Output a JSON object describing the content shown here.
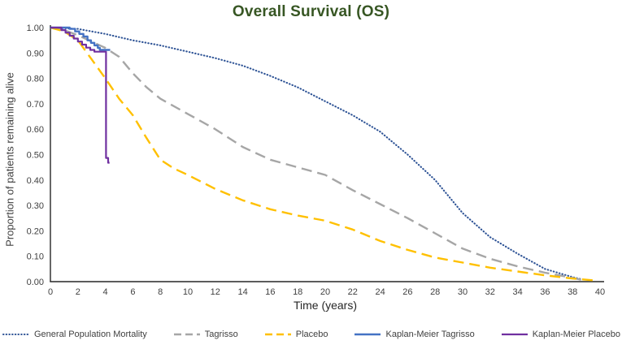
{
  "chart_data": {
    "type": "line",
    "title": "Overall Survival (OS)",
    "xlabel": "Time (years)",
    "ylabel": "Proportion of patients remaining alive",
    "xlim": [
      0,
      40
    ],
    "ylim": [
      0,
      1
    ],
    "grid": false,
    "legend_position": "bottom",
    "x_ticks": [
      "0",
      "2",
      "4",
      "6",
      "8",
      "10",
      "12",
      "14",
      "16",
      "18",
      "20",
      "22",
      "24",
      "26",
      "28",
      "30",
      "32",
      "34",
      "36",
      "38",
      "40"
    ],
    "y_ticks": [
      "0.00",
      "0.10",
      "0.20",
      "0.30",
      "0.40",
      "0.50",
      "0.60",
      "0.70",
      "0.80",
      "0.90",
      "1.00"
    ],
    "colors": {
      "title_green": "#375623",
      "general_population": "#2F5496",
      "tagrisso": "#A6A6A6",
      "placebo": "#FFC000",
      "km_tagrisso": "#4472C4",
      "km_placebo": "#7030A0"
    },
    "series": [
      {
        "name": "General Population Mortality",
        "color": "#2F5496",
        "style": "dotted",
        "width": 2.1,
        "mode": "line",
        "points": [
          [
            0,
            1.0
          ],
          [
            2,
            0.995
          ],
          [
            4,
            0.975
          ],
          [
            6,
            0.95
          ],
          [
            8,
            0.93
          ],
          [
            10,
            0.905
          ],
          [
            12,
            0.88
          ],
          [
            14,
            0.85
          ],
          [
            16,
            0.81
          ],
          [
            18,
            0.765
          ],
          [
            20,
            0.71
          ],
          [
            22,
            0.655
          ],
          [
            24,
            0.59
          ],
          [
            26,
            0.5
          ],
          [
            28,
            0.4
          ],
          [
            30,
            0.27
          ],
          [
            32,
            0.175
          ],
          [
            34,
            0.11
          ],
          [
            36,
            0.05
          ],
          [
            38,
            0.018
          ],
          [
            38.6,
            0.01
          ]
        ]
      },
      {
        "name": "Tagrisso",
        "color": "#A6A6A6",
        "style": "dashed",
        "width": 2.4,
        "mode": "line",
        "points": [
          [
            0,
            1.0
          ],
          [
            1,
            0.99
          ],
          [
            2,
            0.97
          ],
          [
            3,
            0.945
          ],
          [
            4,
            0.92
          ],
          [
            5,
            0.885
          ],
          [
            6,
            0.82
          ],
          [
            7,
            0.765
          ],
          [
            8,
            0.72
          ],
          [
            10,
            0.66
          ],
          [
            12,
            0.6
          ],
          [
            14,
            0.53
          ],
          [
            16,
            0.48
          ],
          [
            18,
            0.45
          ],
          [
            20,
            0.42
          ],
          [
            22,
            0.36
          ],
          [
            24,
            0.305
          ],
          [
            26,
            0.25
          ],
          [
            28,
            0.19
          ],
          [
            30,
            0.13
          ],
          [
            32,
            0.09
          ],
          [
            34,
            0.06
          ],
          [
            36,
            0.035
          ],
          [
            38,
            0.015
          ],
          [
            38.8,
            0.005
          ]
        ]
      },
      {
        "name": "Placebo",
        "color": "#FFC000",
        "style": "dashed",
        "width": 2.4,
        "mode": "line",
        "points": [
          [
            0,
            1.0
          ],
          [
            1,
            0.985
          ],
          [
            2,
            0.95
          ],
          [
            3,
            0.875
          ],
          [
            4,
            0.8
          ],
          [
            5,
            0.72
          ],
          [
            6,
            0.655
          ],
          [
            7,
            0.565
          ],
          [
            8,
            0.48
          ],
          [
            9,
            0.445
          ],
          [
            10,
            0.42
          ],
          [
            12,
            0.365
          ],
          [
            14,
            0.32
          ],
          [
            16,
            0.285
          ],
          [
            18,
            0.26
          ],
          [
            20,
            0.24
          ],
          [
            22,
            0.205
          ],
          [
            24,
            0.16
          ],
          [
            26,
            0.125
          ],
          [
            28,
            0.095
          ],
          [
            30,
            0.075
          ],
          [
            32,
            0.055
          ],
          [
            34,
            0.04
          ],
          [
            36,
            0.025
          ],
          [
            38,
            0.012
          ],
          [
            39.5,
            0.005
          ]
        ]
      },
      {
        "name": "Kaplan-Meier Tagrisso",
        "color": "#4472C4",
        "style": "solid",
        "width": 2.4,
        "mode": "step",
        "points": [
          [
            0,
            1.0
          ],
          [
            1.4,
            0.995
          ],
          [
            1.8,
            0.985
          ],
          [
            2.1,
            0.975
          ],
          [
            2.4,
            0.965
          ],
          [
            2.7,
            0.95
          ],
          [
            2.95,
            0.94
          ],
          [
            3.2,
            0.93
          ],
          [
            3.45,
            0.92
          ],
          [
            3.6,
            0.912
          ],
          [
            4.35,
            0.912
          ]
        ]
      },
      {
        "name": "Kaplan-Meier Placebo",
        "color": "#7030A0",
        "style": "solid",
        "width": 2.2,
        "mode": "step",
        "points": [
          [
            0,
            1.0
          ],
          [
            0.8,
            0.99
          ],
          [
            1.1,
            0.98
          ],
          [
            1.4,
            0.968
          ],
          [
            1.7,
            0.957
          ],
          [
            2.0,
            0.945
          ],
          [
            2.3,
            0.933
          ],
          [
            2.6,
            0.921
          ],
          [
            2.9,
            0.912
          ],
          [
            3.2,
            0.905
          ],
          [
            4.05,
            0.487
          ],
          [
            4.2,
            0.468
          ],
          [
            4.3,
            0.468
          ]
        ]
      }
    ]
  }
}
